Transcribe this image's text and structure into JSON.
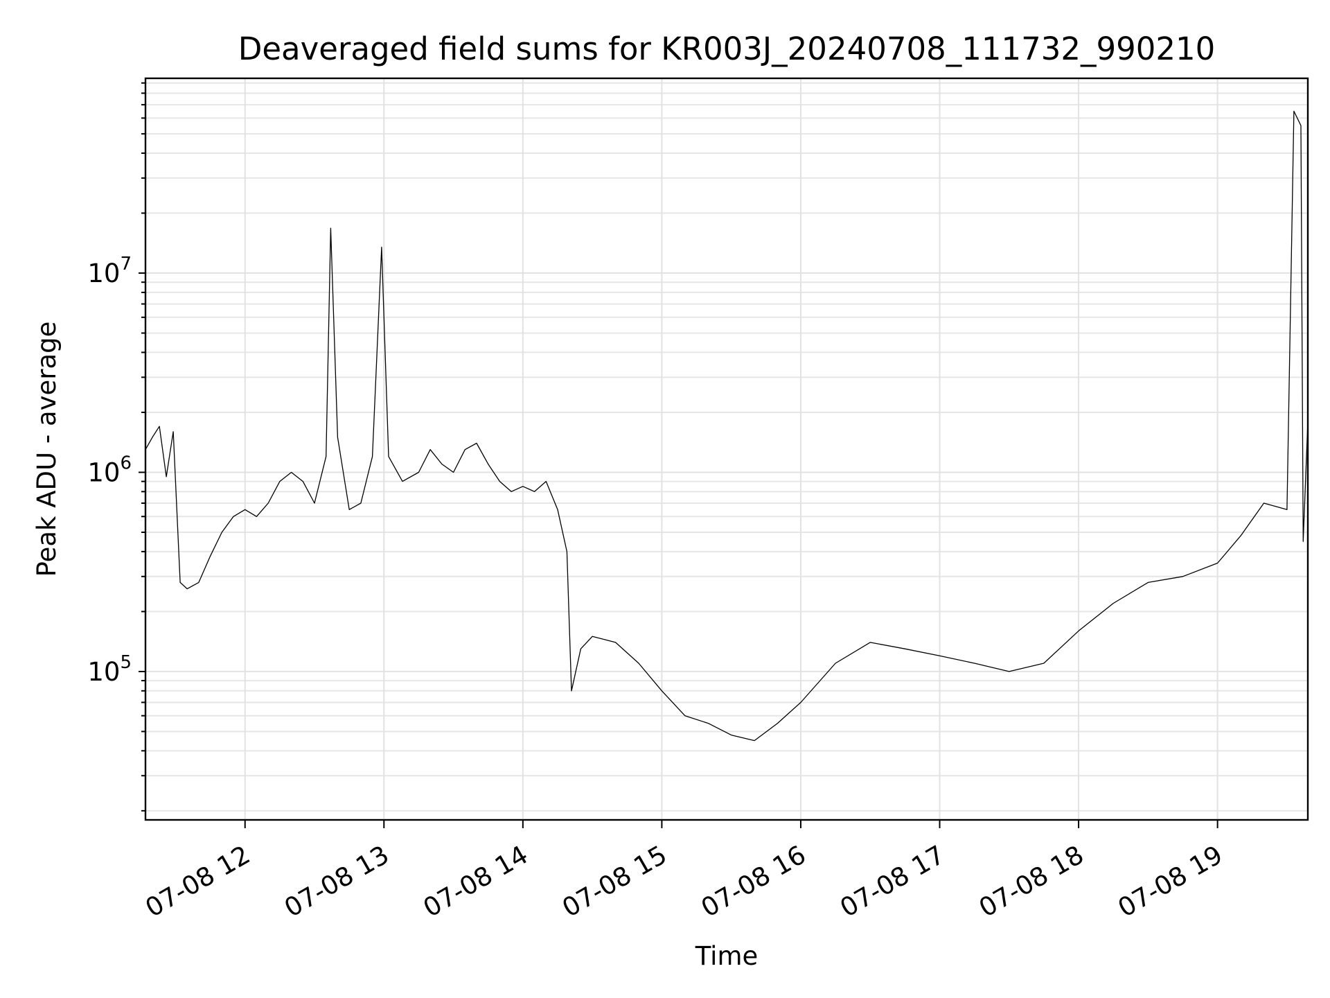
{
  "chart_data": {
    "type": "line",
    "title": "Deaveraged field sums for KR003J_20240708_111732_990210",
    "xlabel": "Time",
    "ylabel": "Peak ADU - average",
    "x_ticks": [
      {
        "value": "2024-07-08T12:00",
        "label": "07-08 12"
      },
      {
        "value": "2024-07-08T13:00",
        "label": "07-08 13"
      },
      {
        "value": "2024-07-08T14:00",
        "label": "07-08 14"
      },
      {
        "value": "2024-07-08T15:00",
        "label": "07-08 15"
      },
      {
        "value": "2024-07-08T16:00",
        "label": "07-08 16"
      },
      {
        "value": "2024-07-08T17:00",
        "label": "07-08 17"
      },
      {
        "value": "2024-07-08T18:00",
        "label": "07-08 18"
      },
      {
        "value": "2024-07-08T19:00",
        "label": "07-08 19"
      }
    ],
    "y_ticks": [
      {
        "value": 100000,
        "base": "10",
        "exp": "5"
      },
      {
        "value": 1000000,
        "base": "10",
        "exp": "6"
      },
      {
        "value": 10000000,
        "base": "10",
        "exp": "7"
      }
    ],
    "yscale": "log",
    "xlim": [
      "2024-07-08T11:17",
      "2024-07-08T19:39"
    ],
    "ylim": [
      18000,
      95000000
    ],
    "grid": true,
    "line_color": "#000000",
    "series": [
      {
        "points": [
          [
            "2024-07-08T11:17",
            1300000
          ],
          [
            "2024-07-08T11:20",
            1500000
          ],
          [
            "2024-07-08T11:23",
            1700000
          ],
          [
            "2024-07-08T11:26",
            950000
          ],
          [
            "2024-07-08T11:29",
            1600000
          ],
          [
            "2024-07-08T11:32",
            280000
          ],
          [
            "2024-07-08T11:35",
            260000
          ],
          [
            "2024-07-08T11:40",
            280000
          ],
          [
            "2024-07-08T11:45",
            380000
          ],
          [
            "2024-07-08T11:50",
            500000
          ],
          [
            "2024-07-08T11:55",
            600000
          ],
          [
            "2024-07-08T12:00",
            650000
          ],
          [
            "2024-07-08T12:05",
            600000
          ],
          [
            "2024-07-08T12:10",
            700000
          ],
          [
            "2024-07-08T12:15",
            900000
          ],
          [
            "2024-07-08T12:20",
            1000000
          ],
          [
            "2024-07-08T12:25",
            900000
          ],
          [
            "2024-07-08T12:30",
            700000
          ],
          [
            "2024-07-08T12:35",
            1200000
          ],
          [
            "2024-07-08T12:37",
            16800000
          ],
          [
            "2024-07-08T12:40",
            1500000
          ],
          [
            "2024-07-08T12:45",
            650000
          ],
          [
            "2024-07-08T12:50",
            700000
          ],
          [
            "2024-07-08T12:55",
            1200000
          ],
          [
            "2024-07-08T12:59",
            13500000
          ],
          [
            "2024-07-08T13:02",
            1200000
          ],
          [
            "2024-07-08T13:08",
            900000
          ],
          [
            "2024-07-08T13:15",
            1000000
          ],
          [
            "2024-07-08T13:20",
            1300000
          ],
          [
            "2024-07-08T13:25",
            1100000
          ],
          [
            "2024-07-08T13:30",
            1000000
          ],
          [
            "2024-07-08T13:35",
            1300000
          ],
          [
            "2024-07-08T13:40",
            1400000
          ],
          [
            "2024-07-08T13:45",
            1100000
          ],
          [
            "2024-07-08T13:50",
            900000
          ],
          [
            "2024-07-08T13:55",
            800000
          ],
          [
            "2024-07-08T14:00",
            850000
          ],
          [
            "2024-07-08T14:05",
            800000
          ],
          [
            "2024-07-08T14:10",
            900000
          ],
          [
            "2024-07-08T14:15",
            650000
          ],
          [
            "2024-07-08T14:19",
            400000
          ],
          [
            "2024-07-08T14:21",
            80000
          ],
          [
            "2024-07-08T14:25",
            130000
          ],
          [
            "2024-07-08T14:30",
            150000
          ],
          [
            "2024-07-08T14:40",
            140000
          ],
          [
            "2024-07-08T14:50",
            110000
          ],
          [
            "2024-07-08T15:00",
            80000
          ],
          [
            "2024-07-08T15:10",
            60000
          ],
          [
            "2024-07-08T15:20",
            55000
          ],
          [
            "2024-07-08T15:30",
            48000
          ],
          [
            "2024-07-08T15:40",
            45000
          ],
          [
            "2024-07-08T15:50",
            55000
          ],
          [
            "2024-07-08T16:00",
            70000
          ],
          [
            "2024-07-08T16:15",
            110000
          ],
          [
            "2024-07-08T16:30",
            140000
          ],
          [
            "2024-07-08T16:45",
            130000
          ],
          [
            "2024-07-08T17:00",
            120000
          ],
          [
            "2024-07-08T17:15",
            110000
          ],
          [
            "2024-07-08T17:30",
            100000
          ],
          [
            "2024-07-08T17:45",
            110000
          ],
          [
            "2024-07-08T18:00",
            160000
          ],
          [
            "2024-07-08T18:15",
            220000
          ],
          [
            "2024-07-08T18:30",
            280000
          ],
          [
            "2024-07-08T18:45",
            300000
          ],
          [
            "2024-07-08T19:00",
            350000
          ],
          [
            "2024-07-08T19:10",
            480000
          ],
          [
            "2024-07-08T19:20",
            700000
          ],
          [
            "2024-07-08T19:30",
            650000
          ],
          [
            "2024-07-08T19:33",
            65000000
          ],
          [
            "2024-07-08T19:36",
            55000000
          ],
          [
            "2024-07-08T19:37",
            450000
          ],
          [
            "2024-07-08T19:39",
            1800000
          ]
        ]
      }
    ]
  }
}
